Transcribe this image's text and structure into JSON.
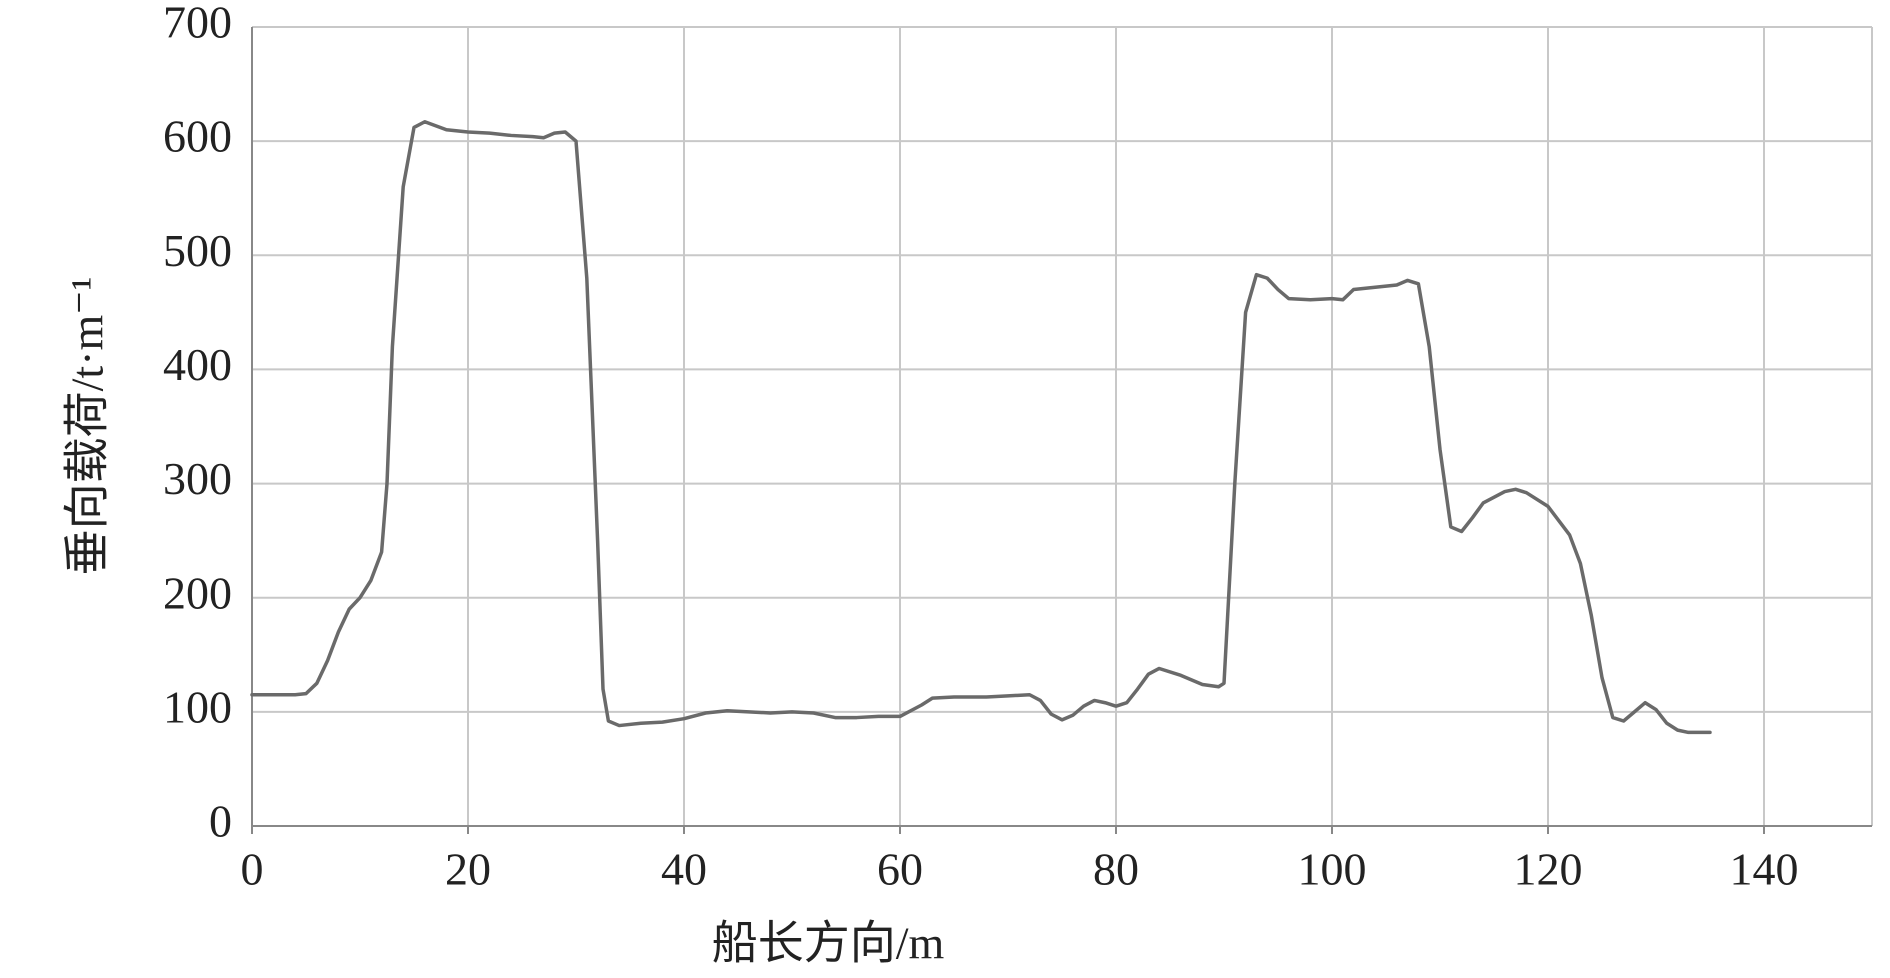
{
  "chart_data": {
    "type": "line",
    "xlabel": "船长方向/m",
    "ylabel": "垂向载荷/t·m⁻¹",
    "xlim": [
      0,
      150
    ],
    "xticks": [
      0,
      20,
      40,
      60,
      80,
      100,
      120,
      140
    ],
    "ylim": [
      0,
      700
    ],
    "yticks": [
      0,
      100,
      200,
      300,
      400,
      500,
      600,
      700
    ],
    "grid": true,
    "series": [
      {
        "color": "#6a6a6a",
        "x": [
          0,
          2,
          4,
          5,
          6,
          7,
          8,
          9,
          10,
          11,
          12,
          12.5,
          13,
          14,
          15,
          16,
          18,
          20,
          22,
          24,
          26,
          27,
          28,
          29,
          30,
          31,
          32,
          32.5,
          33,
          34,
          36,
          38,
          40,
          42,
          44,
          46,
          48,
          50,
          52,
          54,
          56,
          58,
          60,
          62,
          63,
          65,
          68,
          70,
          72,
          73,
          74,
          75,
          76,
          77,
          78,
          79,
          80,
          81,
          82,
          83,
          84,
          86,
          88,
          89.5,
          90,
          91,
          92,
          93,
          94,
          95,
          96,
          98,
          100,
          101,
          102,
          104,
          106,
          107,
          108,
          109,
          110,
          111,
          112,
          113,
          114,
          116,
          117,
          118,
          120,
          122,
          123,
          124,
          125,
          126,
          127,
          128,
          129,
          130,
          131,
          132,
          133,
          135
        ],
        "values": [
          115,
          115,
          115,
          116,
          125,
          145,
          170,
          190,
          200,
          215,
          240,
          300,
          420,
          560,
          612,
          617,
          610,
          608,
          607,
          605,
          604,
          603,
          607,
          608,
          600,
          480,
          250,
          120,
          92,
          88,
          90,
          91,
          94,
          99,
          101,
          100,
          99,
          100,
          99,
          95,
          95,
          96,
          96,
          106,
          112,
          113,
          113,
          114,
          115,
          110,
          98,
          93,
          97,
          105,
          110,
          108,
          105,
          108,
          120,
          133,
          138,
          132,
          124,
          122,
          125,
          300,
          450,
          483,
          480,
          470,
          462,
          461,
          462,
          461,
          470,
          472,
          474,
          478,
          475,
          420,
          330,
          262,
          258,
          270,
          283,
          293,
          295,
          292,
          280,
          255,
          230,
          185,
          130,
          95,
          92,
          100,
          108,
          102,
          90,
          84,
          82,
          82
        ]
      }
    ]
  }
}
